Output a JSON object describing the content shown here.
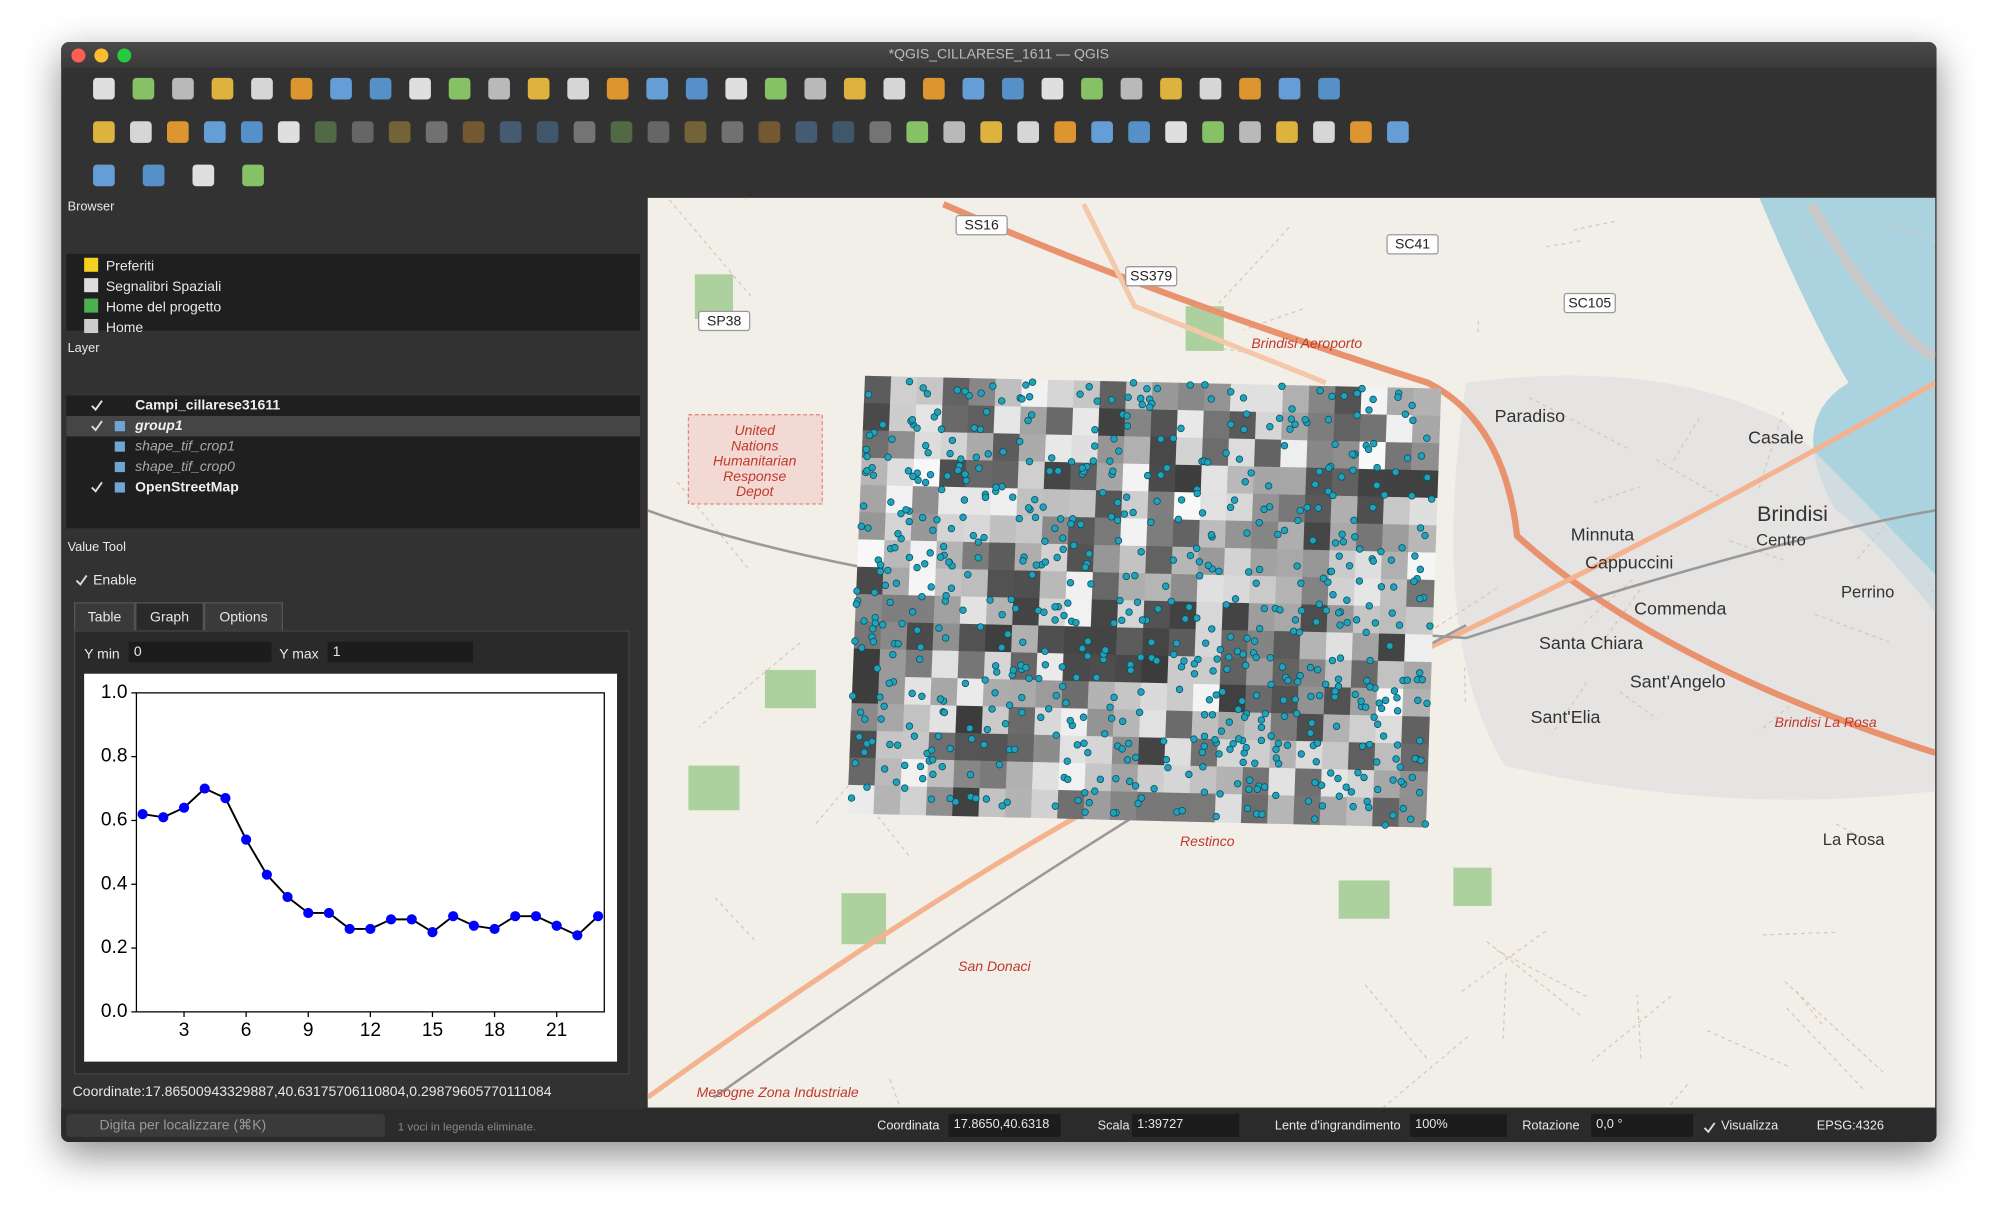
{
  "window": {
    "title": "*QGIS_CILLARESE_1611 — QGIS"
  },
  "browser": {
    "title": "Browser",
    "items": [
      "Preferiti",
      "Segnalibri Spaziali",
      "Home del progetto",
      "Home"
    ]
  },
  "layers": {
    "title": "Layer",
    "items": [
      {
        "name": "Campi_cillarese31611",
        "checked": true
      },
      {
        "name": "group1",
        "checked": true
      },
      {
        "name": "shape_tif_crop1",
        "checked": false
      },
      {
        "name": "shape_tif_crop0",
        "checked": false
      },
      {
        "name": "OpenStreetMap",
        "checked": true
      }
    ]
  },
  "value_tool": {
    "title": "Value Tool",
    "enable": "Enable",
    "tabs": [
      "Table",
      "Graph",
      "Options"
    ],
    "ymin_label": "Y min",
    "ymin": "0",
    "ymax_label": "Y max",
    "ymax": "1",
    "coordinate": "Coordinate:17.86500943329887,40.63175706110804,0.29879605770111084"
  },
  "chart_data": {
    "type": "line",
    "x": [
      1,
      2,
      3,
      4,
      5,
      6,
      7,
      8,
      9,
      10,
      11,
      12,
      13,
      14,
      15,
      16,
      17,
      18,
      19,
      20,
      21,
      22,
      23
    ],
    "series": [
      {
        "color": "#0000ff",
        "line_color": "#000000",
        "values": [
          0.62,
          0.61,
          0.64,
          0.7,
          0.67,
          0.54,
          0.43,
          0.36,
          0.31,
          0.31,
          0.26,
          0.26,
          0.29,
          0.29,
          0.25,
          0.3,
          0.27,
          0.26,
          0.3,
          0.3,
          0.27,
          0.24,
          0.3
        ]
      }
    ],
    "xlim": [
      0.7,
      23.3
    ],
    "xticks": [
      3,
      6,
      9,
      12,
      15,
      18,
      21
    ],
    "ylim": [
      0,
      1
    ],
    "yticks": [
      {
        "value": 0,
        "label": "0.0"
      },
      0.2,
      0.4,
      0.6,
      0.8,
      {
        "value": 1,
        "label": "1.0"
      }
    ]
  },
  "status": {
    "search": "Digita per localizzare (⌘K)",
    "message": "1 voci in legenda eliminate.",
    "coord_label": "Coordinata",
    "coord": "17.8650,40.6318",
    "scale_label": "Scala",
    "scale": "1:39727",
    "magnifier_label": "Lente d'ingrandimento",
    "magnifier": "100%",
    "rotation_label": "Rotazione",
    "rotation": "0,0 °",
    "render": "Visualizza",
    "crs": "EPSG:4326"
  },
  "map_labels": {
    "roads": [
      "SS16",
      "SC41",
      "SS379",
      "SP38",
      "SC105"
    ],
    "red": [
      "Brindisi Aeroporto",
      "Restinco",
      "San Donaci",
      "Mesogne Zona Industriale",
      "Brindisi La Rosa"
    ],
    "places": [
      "Paradiso",
      "Casale",
      "Brindisi",
      "Centro",
      "Minnuta",
      "Cappuccini",
      "Commenda",
      "Perrino",
      "Santa Chiara",
      "Sant'Angelo",
      "Sant'Elia",
      "La Rosa"
    ],
    "depot": [
      "United",
      "Nations",
      "Humanitarian",
      "Response",
      "Depot"
    ]
  }
}
